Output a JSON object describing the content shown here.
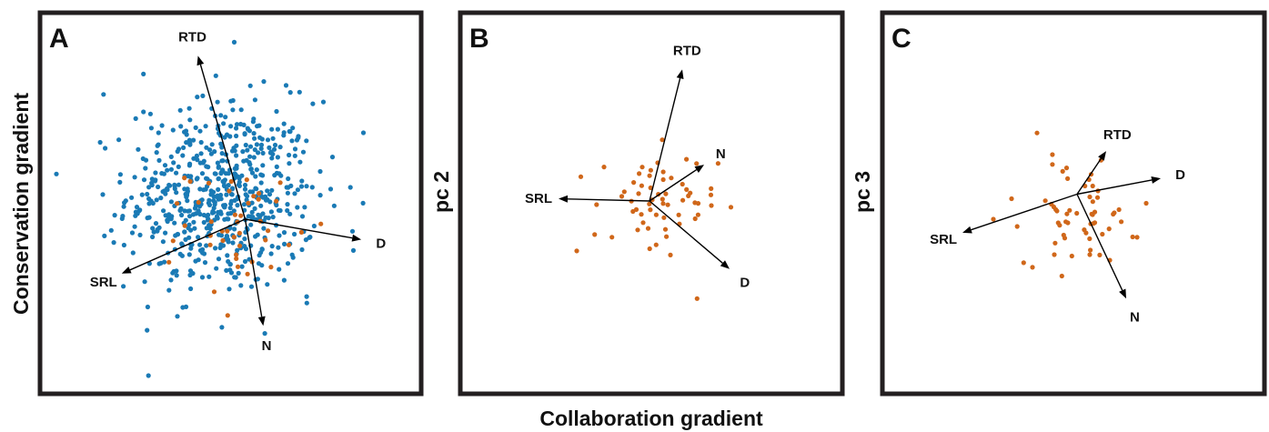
{
  "figure": {
    "x_axis_label": "Collaboration gradient",
    "colors": {
      "blue": "#1a7ab5",
      "orange": "#d0671a",
      "frame": "#231f20",
      "arrow": "#000000"
    }
  },
  "chart_data": [
    {
      "type": "scatter",
      "panel_letter": "A",
      "xlabel": "",
      "ylabel": "Conservation gradient",
      "xlim": [
        -5,
        5
      ],
      "ylim": [
        -4,
        4
      ],
      "grid": false,
      "origin": [
        0.4,
        -0.35
      ],
      "loadings": [
        {
          "label": "RTD",
          "x": -0.9,
          "y": 3.25
        },
        {
          "label": "D",
          "x": 3.6,
          "y": -0.8
        },
        {
          "label": "SRL",
          "x": -3.0,
          "y": -1.55
        },
        {
          "label": "N",
          "x": 0.9,
          "y": -2.7
        }
      ],
      "series": [
        {
          "color_key": "blue",
          "n_points": 620,
          "center": [
            -0.25,
            0.15
          ],
          "spread": [
            1.3,
            1.05
          ],
          "extra_points": [
            [
              -3.5,
              2.4
            ],
            [
              -2.4,
              2.85
            ],
            [
              0.1,
              3.55
            ],
            [
              1.9,
              2.45
            ],
            [
              -2.3,
              -2.8
            ],
            [
              2.1,
              -2.2
            ],
            [
              3.3,
              0.35
            ]
          ]
        },
        {
          "color_key": "orange",
          "n_points": 40,
          "center": [
            0.3,
            -0.35
          ],
          "spread": [
            0.75,
            0.55
          ],
          "extra_points": [
            [
              -1.7,
              -1.3
            ],
            [
              -0.45,
              -1.95
            ],
            [
              0.2,
              -1.4
            ]
          ]
        }
      ]
    },
    {
      "type": "scatter",
      "panel_letter": "B",
      "xlabel": "",
      "ylabel": "pc 2",
      "xlim": [
        -5,
        5
      ],
      "ylim": [
        -4,
        4
      ],
      "grid": false,
      "origin": [
        -0.05,
        0.05
      ],
      "loadings": [
        {
          "label": "RTD",
          "x": 0.85,
          "y": 2.95
        },
        {
          "label": "N",
          "x": 1.45,
          "y": 0.85
        },
        {
          "label": "SRL",
          "x": -2.55,
          "y": 0.1
        },
        {
          "label": "D",
          "x": 2.15,
          "y": -1.45
        }
      ],
      "series": [
        {
          "color_key": "orange",
          "n_points": 58,
          "center": [
            0.1,
            -0.15
          ],
          "spread": [
            0.85,
            0.65
          ],
          "extra_points": [
            [
              -2.05,
              -1.05
            ],
            [
              -1.3,
              0.8
            ],
            [
              1.65,
              -0.05
            ],
            [
              0.3,
              1.4
            ]
          ]
        }
      ]
    },
    {
      "type": "scatter",
      "panel_letter": "C",
      "xlabel": "",
      "ylabel": "pc 3",
      "xlim": [
        -5,
        5
      ],
      "ylim": [
        -4,
        4
      ],
      "grid": false,
      "origin": [
        0.1,
        0.2
      ],
      "loadings": [
        {
          "label": "RTD",
          "x": 0.9,
          "y": 1.15
        },
        {
          "label": "D",
          "x": 2.4,
          "y": 0.55
        },
        {
          "label": "SRL",
          "x": -3.05,
          "y": -0.65
        },
        {
          "label": "N",
          "x": 1.45,
          "y": -2.1
        }
      ],
      "series": [
        {
          "color_key": "orange",
          "n_points": 55,
          "center": [
            0.2,
            -0.25
          ],
          "spread": [
            0.75,
            0.55
          ],
          "extra_points": [
            [
              -1.0,
              1.55
            ],
            [
              -1.7,
              0.1
            ],
            [
              -2.2,
              -0.35
            ],
            [
              2.0,
              0.0
            ],
            [
              1.75,
              -0.75
            ]
          ]
        }
      ]
    }
  ]
}
